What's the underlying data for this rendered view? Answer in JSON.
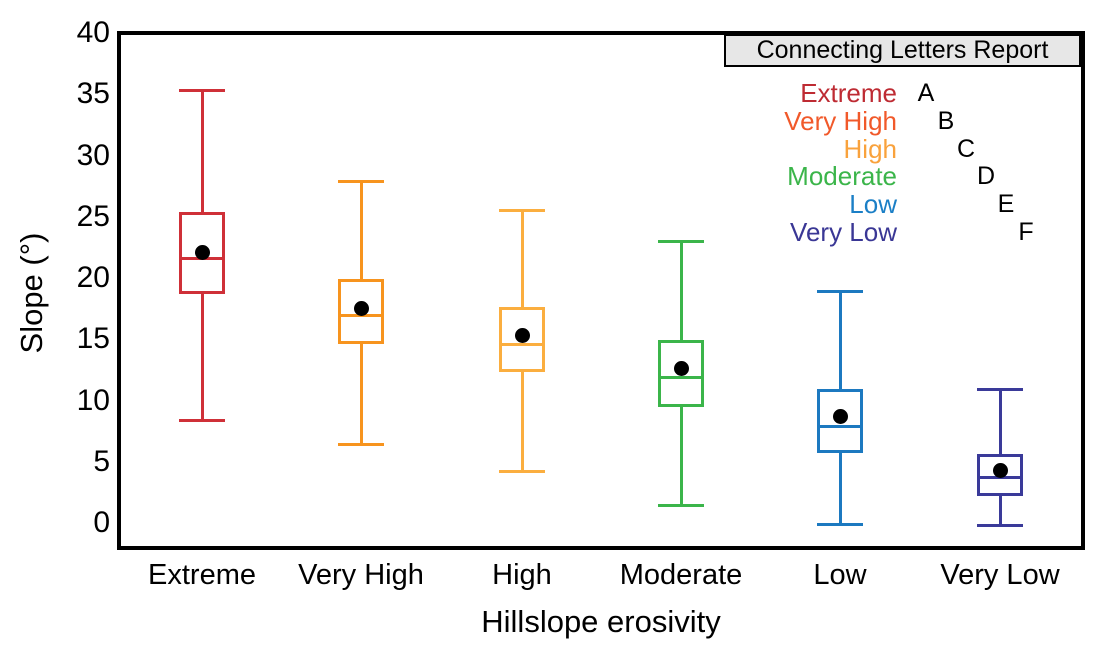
{
  "chart_data": {
    "type": "boxplot",
    "title": "",
    "xlabel": "Hillslope erosivity",
    "ylabel": "Slope (°)",
    "ylim": [
      -2.2,
      40
    ],
    "yticks": [
      40,
      35,
      30,
      25,
      20,
      15,
      10,
      5,
      0
    ],
    "grid": false,
    "legend": {
      "title": "Connecting Letters Report",
      "position": "top-right"
    },
    "categories": [
      "Extreme",
      "Very High",
      "High",
      "Moderate",
      "Low",
      "Very Low"
    ],
    "mean_marker": "black-filled-circle",
    "series": [
      {
        "name": "Extreme",
        "letter": "A",
        "box_color": "#CF3038",
        "label_color": "#BE2B33",
        "min": 8.4,
        "q1": 18.7,
        "median": 21.6,
        "q3": 25.4,
        "max": 35.3,
        "mean": 22.1
      },
      {
        "name": "Very High",
        "letter": "B",
        "box_color": "#F7941E",
        "label_color": "#F1592A",
        "min": 6.4,
        "q1": 14.6,
        "median": 16.9,
        "q3": 19.9,
        "max": 27.9,
        "mean": 17.5
      },
      {
        "name": "High",
        "letter": "C",
        "box_color": "#FBAE3F",
        "label_color": "#F9A23C",
        "min": 4.2,
        "q1": 12.3,
        "median": 14.6,
        "q3": 17.6,
        "max": 25.5,
        "mean": 15.3
      },
      {
        "name": "Moderate",
        "letter": "D",
        "box_color": "#3BB54A",
        "label_color": "#3BB54A",
        "min": 1.4,
        "q1": 9.5,
        "median": 11.9,
        "q3": 14.9,
        "max": 23.0,
        "mean": 12.6
      },
      {
        "name": "Low",
        "letter": "E",
        "box_color": "#1C79C0",
        "label_color": "#1B7FC6",
        "min": -0.1,
        "q1": 5.7,
        "median": 7.9,
        "q3": 10.9,
        "max": 18.9,
        "mean": 8.7
      },
      {
        "name": "Very Low",
        "letter": "F",
        "box_color": "#3A3A99",
        "label_color": "#3A3795",
        "min": -0.2,
        "q1": 2.2,
        "median": 3.7,
        "q3": 5.6,
        "max": 10.9,
        "mean": 4.3
      }
    ]
  }
}
